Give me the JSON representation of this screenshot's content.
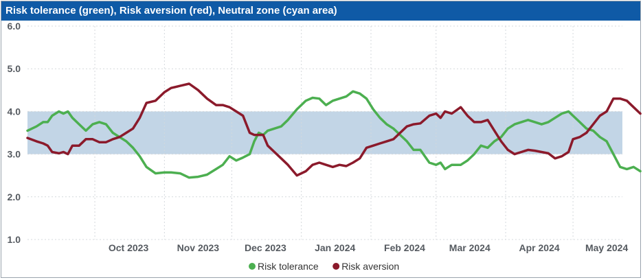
{
  "chart_data": {
    "type": "line",
    "title": "Risk tolerance (green), Risk aversion (red), Neutral zone (cyan area)",
    "ylim": [
      1.0,
      6.0
    ],
    "y_ticks": [
      "1.0",
      "2.0",
      "3.0",
      "4.0",
      "5.0",
      "6.0"
    ],
    "x_ticks": [
      "Oct 2023",
      "Nov 2023",
      "Dec 2023",
      "Jan 2024",
      "Feb 2024",
      "Mar 2024",
      "Apr 2024",
      "May 2024"
    ],
    "x_start": "2023-09-01",
    "x_end": "2024-05-23",
    "grid": true,
    "legend_position": "bottom",
    "neutral_zone": {
      "low": 3.0,
      "high": 4.0,
      "color": "#c2d5e6"
    },
    "series": [
      {
        "name": "Risk tolerance",
        "color": "#4caf50",
        "points": [
          [
            "2023-09-01",
            3.55
          ],
          [
            "2023-09-05",
            3.65
          ],
          [
            "2023-09-08",
            3.75
          ],
          [
            "2023-09-10",
            3.75
          ],
          [
            "2023-09-12",
            3.9
          ],
          [
            "2023-09-15",
            4.0
          ],
          [
            "2023-09-17",
            3.95
          ],
          [
            "2023-09-19",
            4.0
          ],
          [
            "2023-09-21",
            3.85
          ],
          [
            "2023-09-24",
            3.7
          ],
          [
            "2023-09-27",
            3.55
          ],
          [
            "2023-09-30",
            3.7
          ],
          [
            "2023-10-03",
            3.75
          ],
          [
            "2023-10-06",
            3.7
          ],
          [
            "2023-10-09",
            3.5
          ],
          [
            "2023-10-12",
            3.4
          ],
          [
            "2023-10-15",
            3.3
          ],
          [
            "2023-10-18",
            3.15
          ],
          [
            "2023-10-21",
            2.95
          ],
          [
            "2023-10-24",
            2.7
          ],
          [
            "2023-10-28",
            2.55
          ],
          [
            "2023-11-01",
            2.57
          ],
          [
            "2023-11-04",
            2.57
          ],
          [
            "2023-11-08",
            2.55
          ],
          [
            "2023-11-12",
            2.45
          ],
          [
            "2023-11-16",
            2.47
          ],
          [
            "2023-11-20",
            2.52
          ],
          [
            "2023-11-24",
            2.65
          ],
          [
            "2023-11-27",
            2.75
          ],
          [
            "2023-11-30",
            2.95
          ],
          [
            "2023-12-03",
            2.85
          ],
          [
            "2023-12-06",
            2.92
          ],
          [
            "2023-12-09",
            3.0
          ],
          [
            "2023-12-11",
            3.3
          ],
          [
            "2023-12-13",
            3.5
          ],
          [
            "2023-12-15",
            3.45
          ],
          [
            "2023-12-17",
            3.55
          ],
          [
            "2023-12-20",
            3.6
          ],
          [
            "2023-12-23",
            3.65
          ],
          [
            "2023-12-26",
            3.8
          ],
          [
            "2023-12-30",
            4.05
          ],
          [
            "2024-01-03",
            4.25
          ],
          [
            "2024-01-06",
            4.32
          ],
          [
            "2024-01-09",
            4.3
          ],
          [
            "2024-01-12",
            4.15
          ],
          [
            "2024-01-15",
            4.25
          ],
          [
            "2024-01-18",
            4.3
          ],
          [
            "2024-01-21",
            4.35
          ],
          [
            "2024-01-24",
            4.47
          ],
          [
            "2024-01-27",
            4.42
          ],
          [
            "2024-01-30",
            4.3
          ],
          [
            "2024-02-02",
            4.05
          ],
          [
            "2024-02-05",
            3.85
          ],
          [
            "2024-02-08",
            3.7
          ],
          [
            "2024-02-11",
            3.6
          ],
          [
            "2024-02-14",
            3.45
          ],
          [
            "2024-02-17",
            3.3
          ],
          [
            "2024-02-20",
            3.1
          ],
          [
            "2024-02-23",
            3.1
          ],
          [
            "2024-02-27",
            2.8
          ],
          [
            "2024-03-01",
            2.75
          ],
          [
            "2024-03-03",
            2.8
          ],
          [
            "2024-03-05",
            2.65
          ],
          [
            "2024-03-08",
            2.75
          ],
          [
            "2024-03-12",
            2.75
          ],
          [
            "2024-03-15",
            2.85
          ],
          [
            "2024-03-18",
            3.0
          ],
          [
            "2024-03-21",
            3.2
          ],
          [
            "2024-03-24",
            3.15
          ],
          [
            "2024-03-27",
            3.3
          ],
          [
            "2024-03-30",
            3.4
          ],
          [
            "2024-04-02",
            3.6
          ],
          [
            "2024-04-05",
            3.7
          ],
          [
            "2024-04-08",
            3.75
          ],
          [
            "2024-04-11",
            3.8
          ],
          [
            "2024-04-14",
            3.75
          ],
          [
            "2024-04-17",
            3.7
          ],
          [
            "2024-04-20",
            3.75
          ],
          [
            "2024-04-23",
            3.85
          ],
          [
            "2024-04-26",
            3.95
          ],
          [
            "2024-04-29",
            4.0
          ],
          [
            "2024-05-01",
            3.9
          ],
          [
            "2024-05-04",
            3.75
          ],
          [
            "2024-05-07",
            3.6
          ],
          [
            "2024-05-10",
            3.55
          ],
          [
            "2024-05-13",
            3.4
          ],
          [
            "2024-05-16",
            3.3
          ],
          [
            "2024-05-19",
            3.0
          ],
          [
            "2024-05-22",
            2.7
          ],
          [
            "2024-05-25",
            2.65
          ],
          [
            "2024-05-28",
            2.7
          ],
          [
            "2024-05-31",
            2.6
          ]
        ]
      },
      {
        "name": "Risk aversion",
        "color": "#8b1a2b",
        "points": [
          [
            "2023-09-01",
            3.38
          ],
          [
            "2023-09-05",
            3.3
          ],
          [
            "2023-09-08",
            3.25
          ],
          [
            "2023-09-10",
            3.2
          ],
          [
            "2023-09-12",
            3.05
          ],
          [
            "2023-09-15",
            3.02
          ],
          [
            "2023-09-17",
            3.05
          ],
          [
            "2023-09-19",
            3.0
          ],
          [
            "2023-09-21",
            3.2
          ],
          [
            "2023-09-24",
            3.2
          ],
          [
            "2023-09-27",
            3.35
          ],
          [
            "2023-09-30",
            3.35
          ],
          [
            "2023-10-03",
            3.28
          ],
          [
            "2023-10-06",
            3.28
          ],
          [
            "2023-10-09",
            3.35
          ],
          [
            "2023-10-12",
            3.4
          ],
          [
            "2023-10-15",
            3.5
          ],
          [
            "2023-10-18",
            3.6
          ],
          [
            "2023-10-21",
            3.85
          ],
          [
            "2023-10-24",
            4.2
          ],
          [
            "2023-10-28",
            4.25
          ],
          [
            "2023-11-01",
            4.45
          ],
          [
            "2023-11-04",
            4.55
          ],
          [
            "2023-11-08",
            4.6
          ],
          [
            "2023-11-12",
            4.65
          ],
          [
            "2023-11-16",
            4.5
          ],
          [
            "2023-11-20",
            4.3
          ],
          [
            "2023-11-24",
            4.15
          ],
          [
            "2023-11-27",
            4.15
          ],
          [
            "2023-11-30",
            4.1
          ],
          [
            "2023-12-03",
            4.0
          ],
          [
            "2023-12-06",
            3.9
          ],
          [
            "2023-12-09",
            3.5
          ],
          [
            "2023-12-11",
            3.45
          ],
          [
            "2023-12-13",
            3.45
          ],
          [
            "2023-12-15",
            3.45
          ],
          [
            "2023-12-17",
            3.2
          ],
          [
            "2023-12-20",
            3.05
          ],
          [
            "2023-12-23",
            2.9
          ],
          [
            "2023-12-26",
            2.75
          ],
          [
            "2023-12-30",
            2.5
          ],
          [
            "2024-01-03",
            2.6
          ],
          [
            "2024-01-06",
            2.75
          ],
          [
            "2024-01-09",
            2.8
          ],
          [
            "2024-01-12",
            2.75
          ],
          [
            "2024-01-15",
            2.7
          ],
          [
            "2024-01-18",
            2.75
          ],
          [
            "2024-01-21",
            2.72
          ],
          [
            "2024-01-24",
            2.8
          ],
          [
            "2024-01-27",
            2.9
          ],
          [
            "2024-01-30",
            3.15
          ],
          [
            "2024-02-02",
            3.2
          ],
          [
            "2024-02-05",
            3.25
          ],
          [
            "2024-02-08",
            3.3
          ],
          [
            "2024-02-11",
            3.35
          ],
          [
            "2024-02-14",
            3.5
          ],
          [
            "2024-02-17",
            3.65
          ],
          [
            "2024-02-20",
            3.7
          ],
          [
            "2024-02-23",
            3.72
          ],
          [
            "2024-02-27",
            3.9
          ],
          [
            "2024-03-01",
            3.95
          ],
          [
            "2024-03-03",
            3.85
          ],
          [
            "2024-03-05",
            4.0
          ],
          [
            "2024-03-08",
            3.95
          ],
          [
            "2024-03-12",
            4.1
          ],
          [
            "2024-03-15",
            3.9
          ],
          [
            "2024-03-18",
            3.75
          ],
          [
            "2024-03-21",
            3.75
          ],
          [
            "2024-03-24",
            3.8
          ],
          [
            "2024-03-27",
            3.55
          ],
          [
            "2024-03-30",
            3.3
          ],
          [
            "2024-04-02",
            3.1
          ],
          [
            "2024-04-05",
            3.0
          ],
          [
            "2024-04-08",
            3.05
          ],
          [
            "2024-04-11",
            3.1
          ],
          [
            "2024-04-14",
            3.08
          ],
          [
            "2024-04-17",
            3.05
          ],
          [
            "2024-04-20",
            3.02
          ],
          [
            "2024-04-23",
            2.9
          ],
          [
            "2024-04-26",
            2.95
          ],
          [
            "2024-04-29",
            3.05
          ],
          [
            "2024-05-01",
            3.35
          ],
          [
            "2024-05-04",
            3.4
          ],
          [
            "2024-05-07",
            3.5
          ],
          [
            "2024-05-10",
            3.7
          ],
          [
            "2024-05-13",
            3.9
          ],
          [
            "2024-05-16",
            4.0
          ],
          [
            "2024-05-19",
            4.3
          ],
          [
            "2024-05-22",
            4.3
          ],
          [
            "2024-05-25",
            4.25
          ],
          [
            "2024-05-28",
            4.1
          ],
          [
            "2024-05-31",
            3.95
          ]
        ]
      }
    ]
  }
}
